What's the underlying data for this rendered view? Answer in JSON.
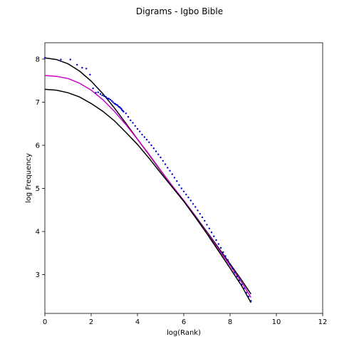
{
  "chart_data": {
    "type": "scatter",
    "title": "Digrams - Igbo Bible",
    "xlabel": "log(Rank)",
    "ylabel": "log Frequency",
    "xlim": [
      0,
      12
    ],
    "ylim": [
      2.1,
      8.38
    ],
    "x_ticks": [
      "0",
      "2",
      "4",
      "6",
      "8",
      "10",
      "12"
    ],
    "y_ticks": [
      "3",
      "4",
      "5",
      "6",
      "7",
      "8"
    ],
    "grid": false,
    "colors": {
      "points": "#0000cc",
      "fit_center": "#cc00cc",
      "fit_bounds": "#000000"
    },
    "points": [
      [
        0.0,
        8.03
      ],
      [
        0.69,
        7.99
      ],
      [
        1.1,
        7.99
      ],
      [
        1.39,
        7.87
      ],
      [
        1.61,
        7.8
      ],
      [
        1.79,
        7.78
      ],
      [
        1.95,
        7.64
      ],
      [
        2.08,
        7.32
      ],
      [
        2.2,
        7.22
      ],
      [
        2.3,
        7.23
      ],
      [
        2.4,
        7.19
      ],
      [
        2.48,
        7.16
      ],
      [
        2.56,
        7.14
      ],
      [
        2.64,
        7.12
      ],
      [
        2.71,
        7.09
      ],
      [
        2.77,
        7.08
      ],
      [
        2.83,
        7.06
      ],
      [
        2.89,
        7.03
      ],
      [
        2.94,
        7.0
      ],
      [
        3.0,
        6.97
      ],
      [
        3.04,
        6.96
      ],
      [
        3.09,
        6.94
      ],
      [
        3.14,
        6.93
      ],
      [
        3.18,
        6.9
      ],
      [
        3.22,
        6.89
      ],
      [
        3.26,
        6.87
      ],
      [
        3.3,
        6.85
      ],
      [
        3.33,
        6.82
      ],
      [
        3.37,
        6.8
      ],
      [
        3.4,
        6.78
      ],
      [
        3.5,
        6.74
      ],
      [
        3.6,
        6.66
      ],
      [
        3.7,
        6.58
      ],
      [
        3.8,
        6.52
      ],
      [
        3.9,
        6.45
      ],
      [
        4.0,
        6.38
      ],
      [
        4.1,
        6.32
      ],
      [
        4.2,
        6.25
      ],
      [
        4.3,
        6.19
      ],
      [
        4.4,
        6.13
      ],
      [
        4.5,
        6.07
      ],
      [
        4.6,
        6.0
      ],
      [
        4.7,
        5.93
      ],
      [
        4.8,
        5.86
      ],
      [
        4.9,
        5.79
      ],
      [
        5.0,
        5.72
      ],
      [
        5.1,
        5.64
      ],
      [
        5.2,
        5.56
      ],
      [
        5.3,
        5.48
      ],
      [
        5.4,
        5.41
      ],
      [
        5.5,
        5.33
      ],
      [
        5.6,
        5.25
      ],
      [
        5.7,
        5.17
      ],
      [
        5.8,
        5.08
      ],
      [
        5.9,
        5.0
      ],
      [
        6.0,
        4.93
      ],
      [
        6.1,
        4.86
      ],
      [
        6.2,
        4.79
      ],
      [
        6.3,
        4.72
      ],
      [
        6.4,
        4.64
      ],
      [
        6.5,
        4.57
      ],
      [
        6.6,
        4.49
      ],
      [
        6.7,
        4.41
      ],
      [
        6.8,
        4.33
      ],
      [
        6.9,
        4.25
      ],
      [
        7.0,
        4.16
      ],
      [
        7.1,
        4.07
      ],
      [
        7.2,
        3.98
      ],
      [
        7.3,
        3.89
      ],
      [
        7.4,
        3.8
      ],
      [
        7.5,
        3.71
      ],
      [
        7.6,
        3.62
      ],
      [
        7.7,
        3.52
      ],
      [
        7.8,
        3.43
      ],
      [
        7.9,
        3.34
      ],
      [
        8.0,
        3.24
      ],
      [
        8.1,
        3.15
      ],
      [
        8.2,
        3.05
      ],
      [
        8.3,
        2.96
      ],
      [
        8.4,
        2.87
      ],
      [
        8.5,
        2.77
      ],
      [
        8.6,
        2.68
      ],
      [
        8.7,
        2.58
      ],
      [
        8.8,
        2.49
      ],
      [
        8.9,
        2.39
      ]
    ],
    "series": [
      {
        "color": "#000000",
        "x": [
          0,
          0.5,
          1,
          1.5,
          2,
          2.5,
          3,
          3.5,
          4,
          4.5,
          5,
          5.5,
          6,
          6.5,
          7,
          7.5,
          8,
          8.5,
          8.9
        ],
        "y": [
          8.03,
          7.99,
          7.89,
          7.72,
          7.49,
          7.2,
          6.87,
          6.51,
          6.14,
          5.78,
          5.41,
          5.06,
          4.72,
          4.36,
          3.99,
          3.62,
          3.25,
          2.87,
          2.55
        ]
      },
      {
        "color": "#cc00cc",
        "x": [
          0,
          0.5,
          1,
          1.5,
          2,
          2.5,
          3,
          3.5,
          4,
          4.5,
          5,
          5.5,
          6,
          6.5,
          7,
          7.5,
          8,
          8.5,
          8.9
        ],
        "y": [
          7.62,
          7.6,
          7.55,
          7.44,
          7.28,
          7.06,
          6.79,
          6.48,
          6.14,
          5.79,
          5.42,
          5.06,
          4.72,
          4.35,
          3.97,
          3.59,
          3.21,
          2.82,
          2.47
        ]
      },
      {
        "color": "#000000",
        "x": [
          0,
          0.5,
          1,
          1.5,
          2,
          2.5,
          3,
          3.5,
          4,
          4.5,
          5,
          5.5,
          6,
          6.5,
          7,
          7.5,
          8,
          8.5,
          8.9
        ],
        "y": [
          7.3,
          7.28,
          7.22,
          7.12,
          6.97,
          6.79,
          6.57,
          6.3,
          6.02,
          5.7,
          5.36,
          5.03,
          4.7,
          4.33,
          3.95,
          3.55,
          3.15,
          2.74,
          2.35
        ]
      }
    ]
  }
}
